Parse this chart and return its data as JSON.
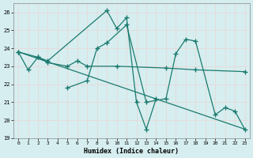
{
  "xlabel": "Humidex (Indice chaleur)",
  "xlim": [
    -0.5,
    23.5
  ],
  "ylim": [
    19,
    26.5
  ],
  "yticks": [
    19,
    20,
    21,
    22,
    23,
    24,
    25,
    26
  ],
  "xticks": [
    0,
    1,
    2,
    3,
    4,
    5,
    6,
    7,
    8,
    9,
    10,
    11,
    12,
    13,
    14,
    15,
    16,
    17,
    18,
    19,
    20,
    21,
    22,
    23
  ],
  "bg_color": "#d6eef0",
  "grid_color": "#c8dfe0",
  "line_color": "#1a7a6e",
  "line1_x": [
    0,
    1,
    2,
    3,
    9,
    10,
    11,
    12,
    13,
    14
  ],
  "line1_y": [
    23.8,
    22.8,
    23.5,
    23.3,
    26.1,
    25.1,
    25.7,
    21.0,
    19.5,
    21.2
  ],
  "line2_x": [
    5,
    7,
    8,
    9,
    11,
    13,
    15,
    16,
    17,
    18,
    20,
    21,
    22,
    23
  ],
  "line2_y": [
    21.8,
    22.2,
    24.0,
    24.3,
    25.3,
    21.0,
    21.2,
    23.7,
    24.5,
    24.4,
    20.3,
    20.7,
    20.5,
    19.5
  ],
  "line3_x": [
    0,
    2,
    3,
    5,
    6,
    7,
    10,
    15,
    18,
    23
  ],
  "line3_y": [
    23.8,
    23.5,
    23.2,
    23.0,
    23.3,
    23.0,
    23.0,
    22.9,
    22.8,
    22.7
  ],
  "line4_x": [
    0,
    23
  ],
  "line4_y": [
    23.8,
    19.5
  ]
}
